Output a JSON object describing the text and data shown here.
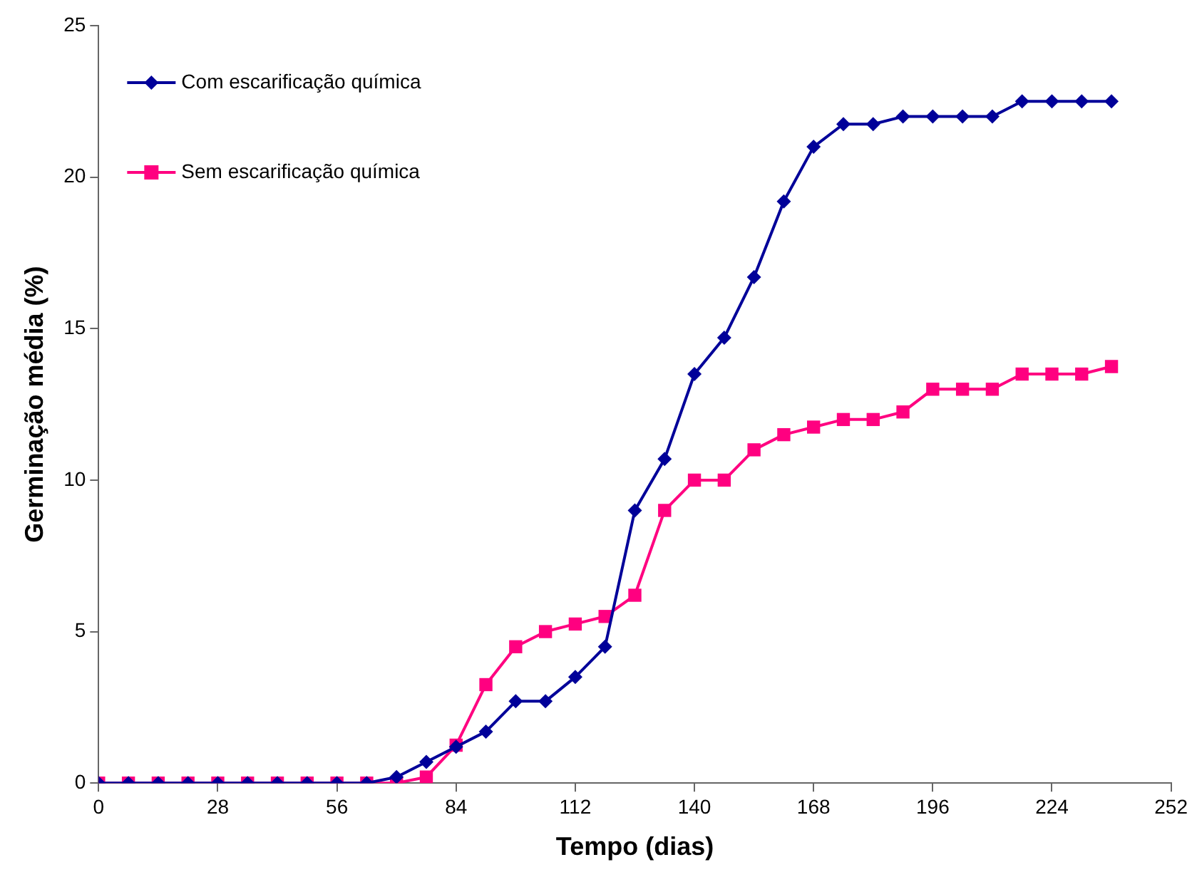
{
  "chart_data": {
    "type": "line",
    "xlabel": "Tempo (dias)",
    "ylabel": "Germinação média (%)",
    "x": [
      0,
      7,
      14,
      21,
      28,
      35,
      42,
      49,
      56,
      63,
      70,
      77,
      84,
      91,
      98,
      105,
      112,
      119,
      126,
      133,
      140,
      147,
      154,
      161,
      168,
      175,
      182,
      189,
      196,
      203,
      210,
      217,
      224,
      231,
      238
    ],
    "series": [
      {
        "name": "Com escarificação química",
        "color": "#000099",
        "marker": "diamond",
        "values": [
          0,
          0,
          0,
          0,
          0,
          0,
          0,
          0,
          0,
          0,
          0.2,
          0.7,
          1.2,
          1.7,
          2.7,
          2.7,
          3.5,
          4.5,
          9.0,
          10.7,
          13.5,
          14.7,
          16.7,
          19.2,
          21.0,
          21.75,
          21.75,
          22.0,
          22.0,
          22.0,
          22.0,
          22.5,
          22.5,
          22.5,
          22.5
        ]
      },
      {
        "name": "Sem escarificação química",
        "color": "#ff0080",
        "marker": "square",
        "values": [
          0,
          0,
          0,
          0,
          0,
          0,
          0,
          0,
          0,
          0,
          0,
          0.2,
          1.25,
          3.25,
          4.5,
          5.0,
          5.25,
          5.5,
          6.2,
          9.0,
          10.0,
          10.0,
          11.0,
          11.5,
          11.75,
          12.0,
          12.0,
          12.25,
          13.0,
          13.0,
          13.0,
          13.5,
          13.5,
          13.5,
          13.75
        ]
      }
    ],
    "xlim": [
      0,
      252
    ],
    "xticks": [
      0,
      28,
      56,
      84,
      112,
      140,
      168,
      196,
      224,
      252
    ],
    "ylim": [
      0,
      25
    ],
    "yticks": [
      0,
      5,
      10,
      15,
      20,
      25
    ],
    "grid": false,
    "legend": "top left"
  }
}
